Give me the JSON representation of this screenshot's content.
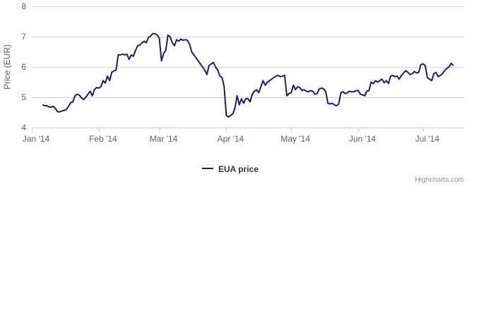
{
  "chart_data": {
    "type": "line",
    "title": "",
    "xlabel": "",
    "ylabel": "Price (EUR)",
    "ylim": [
      4,
      8
    ],
    "y_ticks": [
      "4",
      "5",
      "6",
      "7",
      "8"
    ],
    "x_ticks": [
      {
        "label": "Jan '14",
        "day": 1
      },
      {
        "label": "Feb '14",
        "day": 32
      },
      {
        "label": "Mar '14",
        "day": 60
      },
      {
        "label": "Apr '14",
        "day": 91
      },
      {
        "label": "May '14",
        "day": 121
      },
      {
        "label": "Jun '14",
        "day": 152
      },
      {
        "label": "Jul '14",
        "day": 182
      }
    ],
    "xlim_day": [
      1,
      201
    ],
    "grid": true,
    "legend_position": "bottom-center",
    "credits": "Highcharts.com",
    "color": "#1f1d5e",
    "series": [
      {
        "name": "EUA price",
        "points": [
          [
            6,
            4.75
          ],
          [
            7,
            4.72
          ],
          [
            8,
            4.72
          ],
          [
            9,
            4.68
          ],
          [
            10,
            4.67
          ],
          [
            11,
            4.7
          ],
          [
            12,
            4.62
          ],
          [
            13,
            4.52
          ],
          [
            14,
            4.52
          ],
          [
            15,
            4.55
          ],
          [
            16,
            4.57
          ],
          [
            17,
            4.6
          ],
          [
            18,
            4.7
          ],
          [
            19,
            4.82
          ],
          [
            20,
            4.85
          ],
          [
            21,
            5.05
          ],
          [
            22,
            5.1
          ],
          [
            23,
            5.07
          ],
          [
            24,
            4.98
          ],
          [
            25,
            4.92
          ],
          [
            26,
            5.0
          ],
          [
            27,
            5.1
          ],
          [
            28,
            5.2
          ],
          [
            29,
            5.05
          ],
          [
            30,
            5.25
          ],
          [
            31,
            5.32
          ],
          [
            32,
            5.3
          ],
          [
            33,
            5.35
          ],
          [
            34,
            5.55
          ],
          [
            35,
            5.47
          ],
          [
            36,
            5.7
          ],
          [
            37,
            5.55
          ],
          [
            38,
            5.82
          ],
          [
            39,
            5.87
          ],
          [
            40,
            5.9
          ],
          [
            41,
            6.4
          ],
          [
            42,
            6.4
          ],
          [
            43,
            6.42
          ],
          [
            44,
            6.4
          ],
          [
            45,
            6.42
          ],
          [
            46,
            6.25
          ],
          [
            47,
            6.4
          ],
          [
            48,
            6.35
          ],
          [
            49,
            6.55
          ],
          [
            50,
            6.7
          ],
          [
            51,
            6.72
          ],
          [
            52,
            6.8
          ],
          [
            53,
            6.85
          ],
          [
            54,
            6.8
          ],
          [
            55,
            6.98
          ],
          [
            56,
            7.02
          ],
          [
            57,
            7.1
          ],
          [
            58,
            7.1
          ],
          [
            59,
            7.05
          ],
          [
            60,
            6.95
          ],
          [
            61,
            6.2
          ],
          [
            62,
            6.45
          ],
          [
            63,
            6.55
          ],
          [
            64,
            7.05
          ],
          [
            65,
            7.0
          ],
          [
            66,
            6.8
          ],
          [
            67,
            6.7
          ],
          [
            68,
            6.9
          ],
          [
            69,
            6.85
          ],
          [
            70,
            6.92
          ],
          [
            71,
            6.88
          ],
          [
            72,
            6.9
          ],
          [
            73,
            6.88
          ],
          [
            74,
            6.75
          ],
          [
            75,
            6.5
          ],
          [
            76,
            6.4
          ],
          [
            77,
            6.3
          ],
          [
            78,
            6.2
          ],
          [
            79,
            6.1
          ],
          [
            80,
            6.0
          ],
          [
            81,
            5.9
          ],
          [
            82,
            5.75
          ],
          [
            83,
            6.05
          ],
          [
            84,
            6.1
          ],
          [
            85,
            6.15
          ],
          [
            86,
            6.0
          ],
          [
            87,
            5.9
          ],
          [
            88,
            5.7
          ],
          [
            89,
            5.65
          ],
          [
            90,
            5.35
          ],
          [
            91,
            4.4
          ],
          [
            92,
            4.35
          ],
          [
            93,
            4.4
          ],
          [
            94,
            4.45
          ],
          [
            95,
            4.65
          ],
          [
            96,
            5.05
          ],
          [
            97,
            4.75
          ],
          [
            98,
            4.95
          ],
          [
            99,
            4.8
          ],
          [
            100,
            4.95
          ],
          [
            101,
            4.95
          ],
          [
            102,
            4.85
          ],
          [
            103,
            5.1
          ],
          [
            104,
            5.2
          ],
          [
            105,
            5.25
          ],
          [
            106,
            5.15
          ],
          [
            107,
            5.35
          ],
          [
            108,
            5.55
          ],
          [
            109,
            5.4
          ],
          [
            110,
            5.5
          ],
          [
            111,
            5.55
          ],
          [
            112,
            5.6
          ],
          [
            113,
            5.65
          ],
          [
            114,
            5.7
          ],
          [
            115,
            5.72
          ],
          [
            116,
            5.68
          ],
          [
            117,
            5.7
          ],
          [
            118,
            5.72
          ],
          [
            119,
            5.05
          ],
          [
            120,
            5.12
          ],
          [
            121,
            5.15
          ],
          [
            122,
            5.4
          ],
          [
            123,
            5.25
          ],
          [
            124,
            5.35
          ],
          [
            125,
            5.32
          ],
          [
            126,
            5.22
          ],
          [
            127,
            5.25
          ],
          [
            128,
            5.2
          ],
          [
            129,
            5.18
          ],
          [
            130,
            5.22
          ],
          [
            131,
            5.2
          ],
          [
            132,
            5.1
          ],
          [
            133,
            5.12
          ],
          [
            134,
            5.28
          ],
          [
            135,
            5.3
          ],
          [
            136,
            5.28
          ],
          [
            137,
            5.18
          ],
          [
            138,
            4.8
          ],
          [
            139,
            4.78
          ],
          [
            140,
            4.8
          ],
          [
            141,
            4.75
          ],
          [
            142,
            4.72
          ],
          [
            143,
            4.78
          ],
          [
            144,
            5.15
          ],
          [
            145,
            5.18
          ],
          [
            146,
            5.12
          ],
          [
            147,
            5.15
          ],
          [
            148,
            5.2
          ],
          [
            149,
            5.18
          ],
          [
            150,
            5.18
          ],
          [
            151,
            5.22
          ],
          [
            152,
            5.22
          ],
          [
            153,
            5.1
          ],
          [
            154,
            5.08
          ],
          [
            155,
            5.05
          ],
          [
            156,
            5.2
          ],
          [
            157,
            5.22
          ],
          [
            158,
            5.5
          ],
          [
            159,
            5.45
          ],
          [
            160,
            5.55
          ],
          [
            161,
            5.5
          ],
          [
            162,
            5.55
          ],
          [
            163,
            5.6
          ],
          [
            164,
            5.48
          ],
          [
            165,
            5.55
          ],
          [
            166,
            5.45
          ],
          [
            167,
            5.7
          ],
          [
            168,
            5.72
          ],
          [
            169,
            5.68
          ],
          [
            170,
            5.7
          ],
          [
            171,
            5.6
          ],
          [
            172,
            5.72
          ],
          [
            173,
            5.8
          ],
          [
            174,
            5.88
          ],
          [
            175,
            5.82
          ],
          [
            176,
            5.75
          ],
          [
            177,
            5.78
          ],
          [
            178,
            5.85
          ],
          [
            179,
            5.8
          ],
          [
            180,
            5.82
          ],
          [
            181,
            6.08
          ],
          [
            182,
            6.1
          ],
          [
            183,
            6.05
          ],
          [
            184,
            5.65
          ],
          [
            185,
            5.6
          ],
          [
            186,
            5.55
          ],
          [
            187,
            5.78
          ],
          [
            188,
            5.82
          ],
          [
            189,
            5.68
          ],
          [
            190,
            5.72
          ],
          [
            191,
            5.78
          ],
          [
            192,
            5.88
          ],
          [
            193,
            5.95
          ],
          [
            194,
            6.0
          ],
          [
            195,
            6.12
          ],
          [
            196,
            6.05
          ]
        ]
      }
    ]
  }
}
